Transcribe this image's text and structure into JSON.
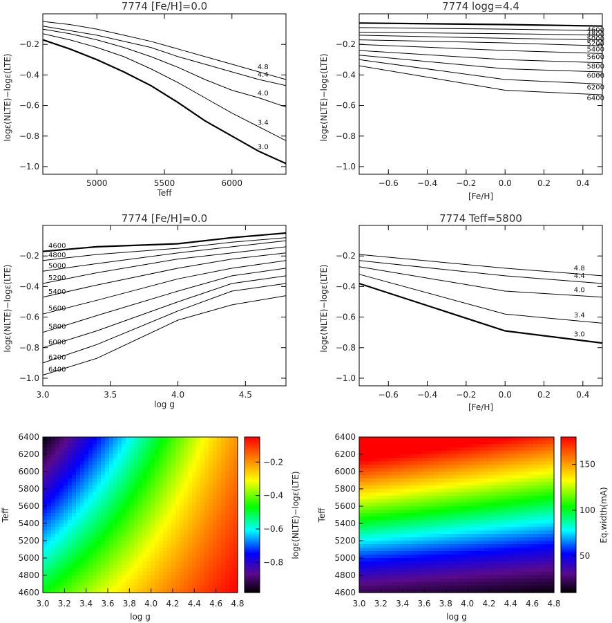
{
  "chart_data": [
    {
      "type": "line",
      "title": "7774   [Fe/H]=0.0",
      "xlabel": "Teff",
      "ylabel": "logε(NLTE)−logε(LTE)",
      "xlim": [
        4600,
        6400
      ],
      "ylim": [
        -1.05,
        0.0
      ],
      "xticks": [
        "5000",
        "5500",
        "6000"
      ],
      "yticks": [
        "-0.2",
        "-0.4",
        "-0.6",
        "-0.8",
        "-1.0"
      ],
      "grid": false,
      "x": [
        4600,
        4800,
        5000,
        5200,
        5400,
        5600,
        5800,
        6000,
        6200,
        6400
      ],
      "series": [
        {
          "label": "4.8",
          "values": [
            -0.05,
            -0.07,
            -0.1,
            -0.14,
            -0.18,
            -0.23,
            -0.28,
            -0.33,
            -0.38,
            -0.43
          ]
        },
        {
          "label": "4.4",
          "values": [
            -0.08,
            -0.11,
            -0.14,
            -0.18,
            -0.22,
            -0.28,
            -0.33,
            -0.38,
            -0.43,
            -0.47
          ]
        },
        {
          "label": "4.0",
          "values": [
            -0.1,
            -0.13,
            -0.17,
            -0.22,
            -0.28,
            -0.35,
            -0.43,
            -0.5,
            -0.55,
            -0.61
          ]
        },
        {
          "label": "3.4",
          "values": [
            -0.13,
            -0.17,
            -0.22,
            -0.28,
            -0.36,
            -0.45,
            -0.55,
            -0.65,
            -0.74,
            -0.83
          ]
        },
        {
          "label": "3.0",
          "values": [
            -0.17,
            -0.23,
            -0.3,
            -0.38,
            -0.47,
            -0.58,
            -0.7,
            -0.8,
            -0.9,
            -0.98
          ]
        }
      ]
    },
    {
      "type": "line",
      "title": "7774   logg=4.4",
      "xlabel": "[Fe/H]",
      "ylabel": "logε(NLTE)−logε(LTE)",
      "xlim": [
        -0.75,
        0.5
      ],
      "ylim": [
        -1.05,
        0.0
      ],
      "xticks": [
        "-0.6",
        "-0.4",
        "-0.2",
        "0.0",
        "0.2",
        "0.4"
      ],
      "yticks": [
        "-0.2",
        "-0.4",
        "-0.6",
        "-0.8",
        "-1.0"
      ],
      "grid": false,
      "x": [
        -0.75,
        0.0,
        0.5
      ],
      "series": [
        {
          "label": "4600",
          "values": [
            -0.06,
            -0.07,
            -0.08
          ]
        },
        {
          "label": "4800",
          "values": [
            -0.09,
            -0.1,
            -0.11
          ]
        },
        {
          "label": "5000",
          "values": [
            -0.12,
            -0.13,
            -0.14
          ]
        },
        {
          "label": "5200",
          "values": [
            -0.14,
            -0.16,
            -0.17
          ]
        },
        {
          "label": "5400",
          "values": [
            -0.17,
            -0.19,
            -0.21
          ]
        },
        {
          "label": "5600",
          "values": [
            -0.2,
            -0.24,
            -0.26
          ]
        },
        {
          "label": "5800",
          "values": [
            -0.24,
            -0.3,
            -0.32
          ]
        },
        {
          "label": "6000",
          "values": [
            -0.27,
            -0.36,
            -0.38
          ]
        },
        {
          "label": "6200",
          "values": [
            -0.3,
            -0.43,
            -0.46
          ]
        },
        {
          "label": "6400",
          "values": [
            -0.34,
            -0.5,
            -0.53
          ]
        }
      ]
    },
    {
      "type": "line",
      "title": "7774   [Fe/H]=0.0",
      "xlabel": "log g",
      "ylabel": "logε(NLTE)−logε(LTE)",
      "xlim": [
        3.0,
        4.8
      ],
      "ylim": [
        -1.05,
        0.0
      ],
      "xticks": [
        "3.0",
        "3.5",
        "4.0",
        "4.5"
      ],
      "yticks": [
        "-0.2",
        "-0.4",
        "-0.6",
        "-0.8",
        "-1.0"
      ],
      "grid": false,
      "x": [
        3.0,
        3.4,
        4.0,
        4.4,
        4.8
      ],
      "series": [
        {
          "label": "4600",
          "values": [
            -0.17,
            -0.14,
            -0.12,
            -0.08,
            -0.05
          ]
        },
        {
          "label": "4800",
          "values": [
            -0.23,
            -0.19,
            -0.15,
            -0.11,
            -0.08
          ]
        },
        {
          "label": "5000",
          "values": [
            -0.3,
            -0.25,
            -0.18,
            -0.14,
            -0.1
          ]
        },
        {
          "label": "5200",
          "values": [
            -0.38,
            -0.31,
            -0.22,
            -0.18,
            -0.14
          ]
        },
        {
          "label": "5400",
          "values": [
            -0.47,
            -0.39,
            -0.28,
            -0.22,
            -0.18
          ]
        },
        {
          "label": "5600",
          "values": [
            -0.58,
            -0.49,
            -0.35,
            -0.28,
            -0.23
          ]
        },
        {
          "label": "5800",
          "values": [
            -0.7,
            -0.59,
            -0.43,
            -0.33,
            -0.28
          ]
        },
        {
          "label": "6000",
          "values": [
            -0.8,
            -0.69,
            -0.5,
            -0.38,
            -0.33
          ]
        },
        {
          "label": "6200",
          "values": [
            -0.9,
            -0.78,
            -0.56,
            -0.43,
            -0.38
          ]
        },
        {
          "label": "6400",
          "values": [
            -0.98,
            -0.87,
            -0.62,
            -0.52,
            -0.46
          ]
        }
      ]
    },
    {
      "type": "line",
      "title": "7774   Teff=5800",
      "xlabel": "[Fe/H]",
      "ylabel": "logε(NLTE)−logε(LTE)",
      "xlim": [
        -0.75,
        0.5
      ],
      "ylim": [
        -1.05,
        0.0
      ],
      "xticks": [
        "-0.6",
        "-0.4",
        "-0.2",
        "0.0",
        "0.2",
        "0.4"
      ],
      "yticks": [
        "-0.2",
        "-0.4",
        "-0.6",
        "-0.8",
        "-1.0"
      ],
      "grid": false,
      "x": [
        -0.75,
        0.0,
        0.5
      ],
      "series": [
        {
          "label": "4.8",
          "values": [
            -0.19,
            -0.28,
            -0.33
          ]
        },
        {
          "label": "4.4",
          "values": [
            -0.23,
            -0.33,
            -0.38
          ]
        },
        {
          "label": "4.0",
          "values": [
            -0.27,
            -0.43,
            -0.47
          ]
        },
        {
          "label": "3.4",
          "values": [
            -0.32,
            -0.58,
            -0.64
          ]
        },
        {
          "label": "3.0",
          "values": [
            -0.38,
            -0.69,
            -0.77
          ]
        }
      ]
    },
    {
      "type": "heatmap",
      "xlabel": "log g",
      "ylabel": "Teff",
      "xlim": [
        3.0,
        4.8
      ],
      "ylim": [
        4600,
        6400
      ],
      "xticks": [
        "3.0",
        "3.2",
        "3.4",
        "3.6",
        "3.8",
        "4.0",
        "4.2",
        "4.4",
        "4.6",
        "4.8"
      ],
      "yticks": [
        "4600",
        "4800",
        "5000",
        "5200",
        "5400",
        "5600",
        "5800",
        "6000",
        "6200",
        "6400"
      ],
      "colorbar_label": "logε(NLTE)−logε(LTE)",
      "colorbar_range": [
        -0.98,
        -0.05
      ],
      "colorbar_ticks": [
        "-0.2",
        "-0.4",
        "-0.6",
        "-0.8"
      ],
      "colormap": "rainbow"
    },
    {
      "type": "heatmap",
      "xlabel": "log g",
      "ylabel": "Teff",
      "xlim": [
        3.0,
        4.8
      ],
      "ylim": [
        4600,
        6400
      ],
      "xticks": [
        "3.0",
        "3.2",
        "3.4",
        "3.6",
        "3.8",
        "4.0",
        "4.2",
        "4.4",
        "4.6",
        "4.8"
      ],
      "yticks": [
        "4600",
        "4800",
        "5000",
        "5200",
        "5400",
        "5600",
        "5800",
        "6000",
        "6200",
        "6400"
      ],
      "colorbar_label": "Eq.width(mA)",
      "colorbar_range": [
        10,
        180
      ],
      "colorbar_ticks": [
        "50",
        "100",
        "150"
      ],
      "colormap": "rainbow"
    }
  ]
}
